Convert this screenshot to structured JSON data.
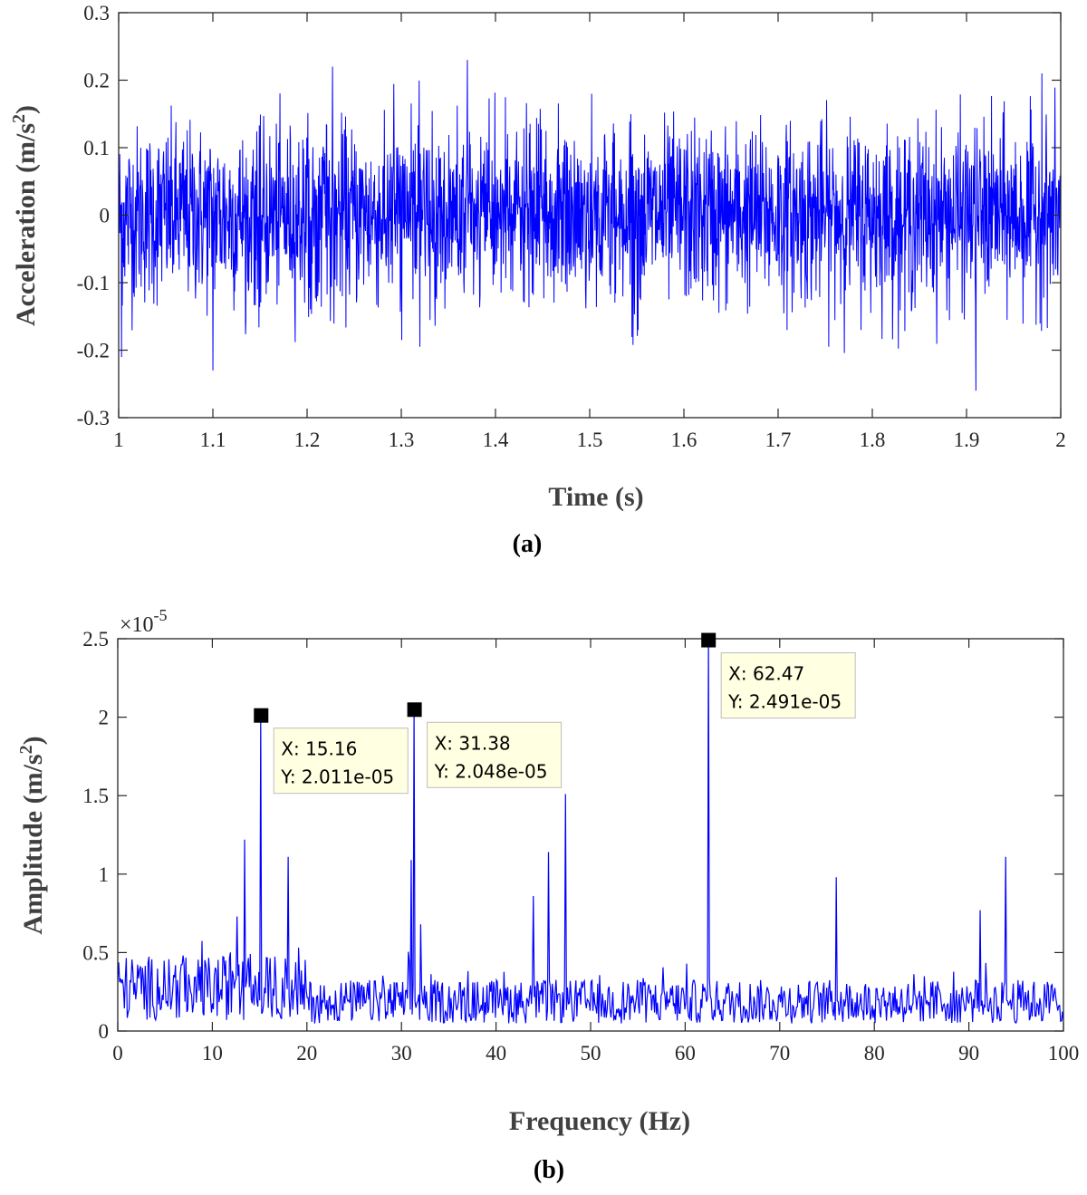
{
  "chart_data": [
    {
      "type": "line",
      "panel_label": "(a)",
      "xlabel": "Time (s)",
      "ylabel_main": "Acceleration (m/s",
      "ylabel_sup": "2",
      "ylabel_tail": ")",
      "xlim": [
        1,
        2
      ],
      "ylim": [
        -0.3,
        0.3
      ],
      "xticks": [
        1,
        1.1,
        1.2,
        1.3,
        1.4,
        1.5,
        1.6,
        1.7,
        1.8,
        1.9,
        2
      ],
      "xtick_labels": [
        "1",
        "1.1",
        "1.2",
        "1.3",
        "1.4",
        "1.5",
        "1.6",
        "1.7",
        "1.8",
        "1.9",
        "2"
      ],
      "yticks": [
        -0.3,
        -0.2,
        -0.1,
        0,
        0.1,
        0.2,
        0.3
      ],
      "ytick_labels": [
        "-0.3",
        "-0.2",
        "-0.1",
        "0",
        "0.1",
        "0.2",
        "0.3"
      ],
      "line_color": "#0000ff",
      "signal": {
        "kind": "broadband-noise",
        "std": 0.065,
        "sample_count": 2600,
        "max": 0.23,
        "min": -0.26,
        "peaks": [
          {
            "x": 1.37,
            "y": 0.23
          },
          {
            "x": 1.003,
            "y": 0.22
          },
          {
            "x": 1.227,
            "y": 0.22
          },
          {
            "x": 1.98,
            "y": 0.21
          },
          {
            "x": 1.91,
            "y": -0.26
          },
          {
            "x": 1.1,
            "y": -0.23
          },
          {
            "x": 1.003,
            "y": -0.21
          }
        ]
      }
    },
    {
      "type": "line",
      "panel_label": "(b)",
      "xlabel": "Frequency (Hz)",
      "ylabel_main": "Amplitude (m/s",
      "ylabel_sup": "2",
      "ylabel_tail": ")",
      "exponent_base": "×10",
      "exponent_power": "-5",
      "xlim": [
        0,
        100
      ],
      "ylim": [
        0,
        2.5
      ],
      "xticks": [
        0,
        10,
        20,
        30,
        40,
        50,
        60,
        70,
        80,
        90,
        100
      ],
      "xtick_labels": [
        "0",
        "10",
        "20",
        "30",
        "40",
        "50",
        "60",
        "70",
        "80",
        "90",
        "100"
      ],
      "yticks": [
        0,
        0.5,
        1,
        1.5,
        2,
        2.5
      ],
      "ytick_labels": [
        "0",
        "0.5",
        "1",
        "1.5",
        "2",
        "2.5"
      ],
      "line_color": "#0000ff",
      "spectrum": {
        "noise_floor": 0.22,
        "sample_count": 1000,
        "peaks": [
          {
            "x": 12.6,
            "y": 0.73
          },
          {
            "x": 13.4,
            "y": 1.22
          },
          {
            "x": 15.16,
            "y": 2.011
          },
          {
            "x": 18.0,
            "y": 1.11
          },
          {
            "x": 31.0,
            "y": 1.09
          },
          {
            "x": 31.38,
            "y": 2.048
          },
          {
            "x": 32.0,
            "y": 0.68
          },
          {
            "x": 43.9,
            "y": 0.86
          },
          {
            "x": 45.5,
            "y": 1.14
          },
          {
            "x": 47.3,
            "y": 1.51
          },
          {
            "x": 62.47,
            "y": 2.491
          },
          {
            "x": 76.0,
            "y": 0.98
          },
          {
            "x": 91.2,
            "y": 0.77
          },
          {
            "x": 93.9,
            "y": 1.11
          }
        ]
      },
      "datatips": [
        {
          "x": 15.16,
          "y": 2.011,
          "label_x": "X: 15.16",
          "label_y": "Y: 2.011e-05",
          "box_side": "right-below"
        },
        {
          "x": 31.38,
          "y": 2.048,
          "label_x": "X: 31.38",
          "label_y": "Y: 2.048e-05",
          "box_side": "right-below"
        },
        {
          "x": 62.47,
          "y": 2.491,
          "label_x": "X: 62.47",
          "label_y": "Y: 2.491e-05",
          "box_side": "right-below"
        }
      ]
    }
  ]
}
